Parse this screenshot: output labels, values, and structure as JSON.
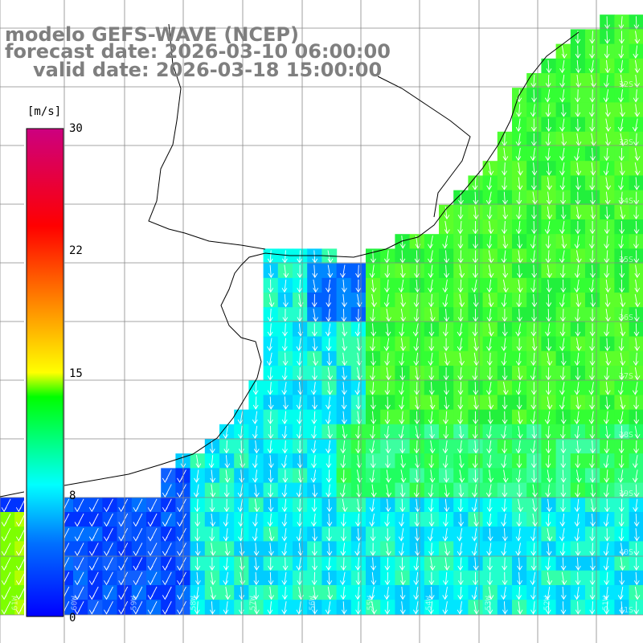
{
  "title": {
    "model": "modelo GEFS-WAVE (NCEP)",
    "forecast": "forecast date: 2026-03-10 06:00:00",
    "valid": "valid date: 2026-03-18 15:00:00"
  },
  "colorbar": {
    "unit": "[m/s]",
    "ticks": [
      "30",
      "22",
      "15",
      "8",
      "0"
    ],
    "range": [
      0,
      30
    ],
    "colors": [
      "#0000ff",
      "#0080ff",
      "#00ffff",
      "#00ff00",
      "#ffff00",
      "#ff8000",
      "#ff0000",
      "#cc0080"
    ]
  },
  "map": {
    "lat_labels": [
      "32S",
      "33S",
      "34S",
      "35S",
      "36S",
      "37S",
      "38S",
      "39S",
      "40S",
      "41S"
    ],
    "lon_labels": [
      "61W",
      "60W",
      "59W",
      "58W",
      "57W",
      "56W",
      "55W",
      "54W",
      "53W",
      "52W",
      "51W"
    ],
    "field": "wind speed and direction",
    "arrow_direction": "from north (southward)"
  }
}
